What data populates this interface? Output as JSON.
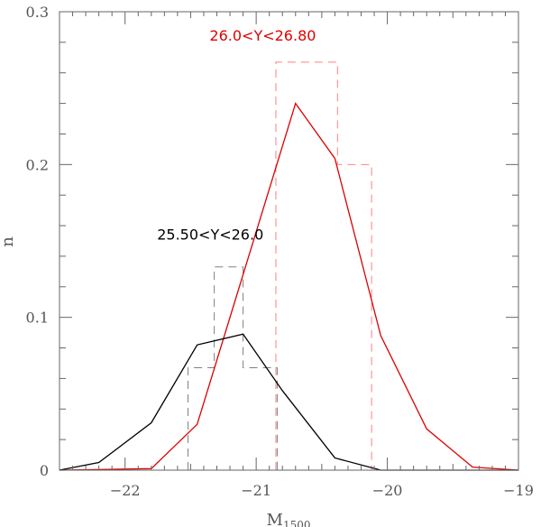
{
  "chart_data": {
    "type": "line",
    "title": "",
    "xlabel": "M",
    "xlabel_sub": "1500",
    "ylabel": "n",
    "xlim": [
      -22.5,
      -19
    ],
    "ylim": [
      0,
      0.3
    ],
    "xticks": [
      -22,
      -21,
      -20,
      -19
    ],
    "xtick_labels": [
      "−22",
      "−21",
      "−20",
      "−19"
    ],
    "yticks": [
      0,
      0.1,
      0.2,
      0.3
    ],
    "ytick_labels": [
      "0",
      "0.1",
      "0.2",
      "0.3"
    ],
    "grid": false,
    "annotations": [
      {
        "text": "26.0<Y<26.80",
        "color": "#dd0000",
        "x": -20.95,
        "y": 0.281
      },
      {
        "text": "25.50<Y<26.0",
        "color": "#000000",
        "x": -21.35,
        "y": 0.151
      }
    ],
    "series": [
      {
        "kind": "line",
        "color": "#dd0000",
        "x": [
          -22.5,
          -21.8,
          -21.45,
          -20.7,
          -20.4,
          -20.05,
          -19.7,
          -19.35,
          -19.0
        ],
        "y": [
          0.0,
          0.001,
          0.03,
          0.24,
          0.204,
          0.088,
          0.027,
          0.002,
          0.0
        ]
      },
      {
        "kind": "line",
        "color": "#000000",
        "x": [
          -22.5,
          -22.2,
          -21.8,
          -21.45,
          -21.1,
          -20.8,
          -20.4,
          -20.05,
          -19.0
        ],
        "y": [
          0.0,
          0.005,
          0.031,
          0.082,
          0.089,
          0.052,
          0.008,
          0.0,
          0.0
        ]
      },
      {
        "kind": "dashed-histogram",
        "color": "#ff8080",
        "edges": [
          -20.85,
          -20.38,
          -20.12
        ],
        "values": [
          0.267,
          0.2
        ]
      },
      {
        "kind": "dashed-histogram",
        "color": "#808080",
        "edges": [
          -21.52,
          -21.32,
          -21.1,
          -20.84
        ],
        "values": [
          0.067,
          0.133,
          0.067
        ]
      }
    ]
  }
}
